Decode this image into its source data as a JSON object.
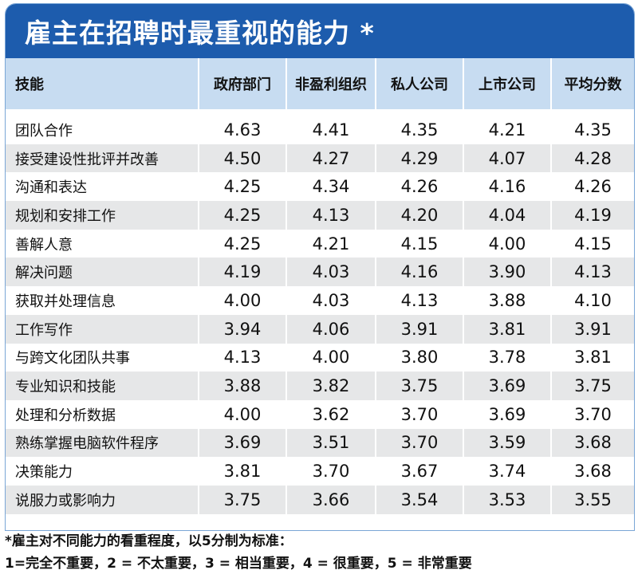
{
  "title": "雇主在招聘时最重视的能力 *",
  "columns": [
    "技能",
    "政府部门",
    "非盈利组织",
    "私人公司",
    "上市公司",
    "平均分数"
  ],
  "rows": [
    [
      "团队合作",
      "4.63",
      "4.41",
      "4.35",
      "4.21",
      "4.35"
    ],
    [
      "接受建设性批评并改善",
      "4.50",
      "4.27",
      "4.29",
      "4.07",
      "4.28"
    ],
    [
      "沟通和表达",
      "4.25",
      "4.34",
      "4.26",
      "4.16",
      "4.26"
    ],
    [
      "规划和安排工作",
      "4.25",
      "4.13",
      "4.20",
      "4.04",
      "4.19"
    ],
    [
      "善解人意",
      "4.25",
      "4.21",
      "4.15",
      "4.00",
      "4.15"
    ],
    [
      "解决问题",
      "4.19",
      "4.03",
      "4.16",
      "3.90",
      "4.13"
    ],
    [
      "获取并处理信息",
      "4.00",
      "4.03",
      "4.13",
      "3.88",
      "4.10"
    ],
    [
      "工作写作",
      "3.94",
      "4.06",
      "3.91",
      "3.81",
      "3.91"
    ],
    [
      "与跨文化团队共事",
      "4.13",
      "4.00",
      "3.80",
      "3.78",
      "3.81"
    ],
    [
      "专业知识和技能",
      "3.88",
      "3.82",
      "3.75",
      "3.69",
      "3.75"
    ],
    [
      "处理和分析数据",
      "4.00",
      "3.62",
      "3.70",
      "3.69",
      "3.70"
    ],
    [
      "熟练掌握电脑软件程序",
      "3.69",
      "3.51",
      "3.70",
      "3.59",
      "3.68"
    ],
    [
      "决策能力",
      "3.81",
      "3.70",
      "3.67",
      "3.74",
      "3.68"
    ],
    [
      "说服力或影响力",
      "3.75",
      "3.66",
      "3.54",
      "3.53",
      "3.55"
    ]
  ],
  "footnote_line1": "*雇主对不同能力的看重程度，以5分制为标准：",
  "footnote_line2": "1=完全不重要，2 = 不太重要，3 = 相当重要，4 = 很重要，5 = 非常重要",
  "colors": {
    "title_bg": "#1d5cad",
    "header_bg": "#c7dcf1",
    "stripe_bg": "#e6e7e8"
  }
}
